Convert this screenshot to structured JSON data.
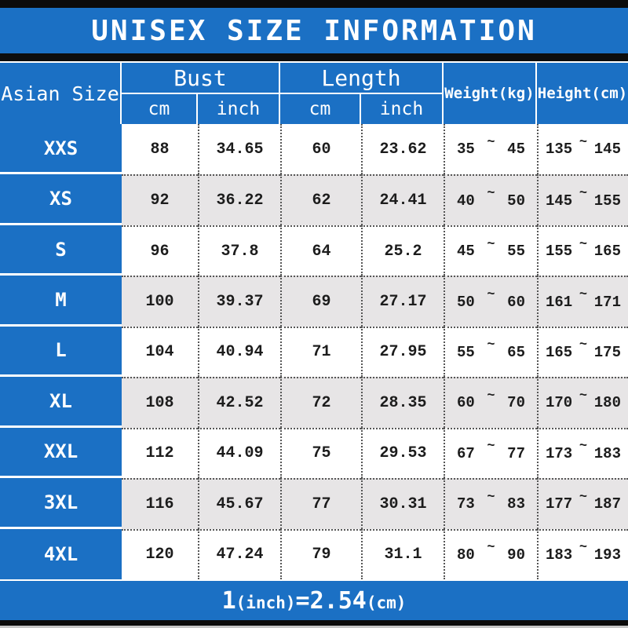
{
  "title": "UNISEX SIZE INFORMATION",
  "table": {
    "col_size": "Asian Size",
    "group_bust": "Bust",
    "group_length": "Length",
    "sub_cm": "cm",
    "sub_inch": "inch",
    "col_weight": "Weight(kg)",
    "col_height": "Height(cm)",
    "tilde": "~",
    "rows": [
      {
        "size": "XXS",
        "bust_cm": "88",
        "bust_inch": "34.65",
        "length_cm": "60",
        "length_inch": "23.62",
        "weight_min": "35",
        "weight_max": "45",
        "height_min": "135",
        "height_max": "145"
      },
      {
        "size": "XS",
        "bust_cm": "92",
        "bust_inch": "36.22",
        "length_cm": "62",
        "length_inch": "24.41",
        "weight_min": "40",
        "weight_max": "50",
        "height_min": "145",
        "height_max": "155"
      },
      {
        "size": "S",
        "bust_cm": "96",
        "bust_inch": "37.8",
        "length_cm": "64",
        "length_inch": "25.2",
        "weight_min": "45",
        "weight_max": "55",
        "height_min": "155",
        "height_max": "165"
      },
      {
        "size": "M",
        "bust_cm": "100",
        "bust_inch": "39.37",
        "length_cm": "69",
        "length_inch": "27.17",
        "weight_min": "50",
        "weight_max": "60",
        "height_min": "161",
        "height_max": "171"
      },
      {
        "size": "L",
        "bust_cm": "104",
        "bust_inch": "40.94",
        "length_cm": "71",
        "length_inch": "27.95",
        "weight_min": "55",
        "weight_max": "65",
        "height_min": "165",
        "height_max": "175"
      },
      {
        "size": "XL",
        "bust_cm": "108",
        "bust_inch": "42.52",
        "length_cm": "72",
        "length_inch": "28.35",
        "weight_min": "60",
        "weight_max": "70",
        "height_min": "170",
        "height_max": "180"
      },
      {
        "size": "XXL",
        "bust_cm": "112",
        "bust_inch": "44.09",
        "length_cm": "75",
        "length_inch": "29.53",
        "weight_min": "67",
        "weight_max": "77",
        "height_min": "173",
        "height_max": "183"
      },
      {
        "size": "3XL",
        "bust_cm": "116",
        "bust_inch": "45.67",
        "length_cm": "77",
        "length_inch": "30.31",
        "weight_min": "73",
        "weight_max": "83",
        "height_min": "177",
        "height_max": "187"
      },
      {
        "size": "4XL",
        "bust_cm": "120",
        "bust_inch": "47.24",
        "length_cm": "79",
        "length_inch": "31.1",
        "weight_min": "80",
        "weight_max": "90",
        "height_min": "183",
        "height_max": "193"
      }
    ]
  },
  "footer": {
    "one": "1",
    "inch_unit": "(inch)",
    "equals": "=2.54",
    "cm_unit": "(cm)"
  },
  "colors": {
    "blue": "#1b70c4",
    "alt_row": "#e7e5e6",
    "black_bar": "#0b0b0b",
    "text": "#1c1c1c"
  },
  "chart_data": {
    "type": "table",
    "title": "UNISEX SIZE INFORMATION",
    "columns": [
      "Asian Size",
      "Bust cm",
      "Bust inch",
      "Length cm",
      "Length inch",
      "Weight(kg)",
      "Height(cm)"
    ],
    "rows": [
      [
        "XXS",
        88,
        34.65,
        60,
        23.62,
        "35~45",
        "135~145"
      ],
      [
        "XS",
        92,
        36.22,
        62,
        24.41,
        "40~50",
        "145~155"
      ],
      [
        "S",
        96,
        37.8,
        64,
        25.2,
        "45~55",
        "155~165"
      ],
      [
        "M",
        100,
        39.37,
        69,
        27.17,
        "50~60",
        "161~171"
      ],
      [
        "L",
        104,
        40.94,
        71,
        27.95,
        "55~65",
        "165~175"
      ],
      [
        "XL",
        108,
        42.52,
        72,
        28.35,
        "60~70",
        "170~180"
      ],
      [
        "XXL",
        112,
        44.09,
        75,
        29.53,
        "67~77",
        "173~183"
      ],
      [
        "3XL",
        116,
        45.67,
        77,
        30.31,
        "73~83",
        "177~187"
      ],
      [
        "4XL",
        120,
        47.24,
        79,
        31.1,
        "80~90",
        "183~193"
      ]
    ],
    "footnote": "1(inch)=2.54(cm)"
  }
}
